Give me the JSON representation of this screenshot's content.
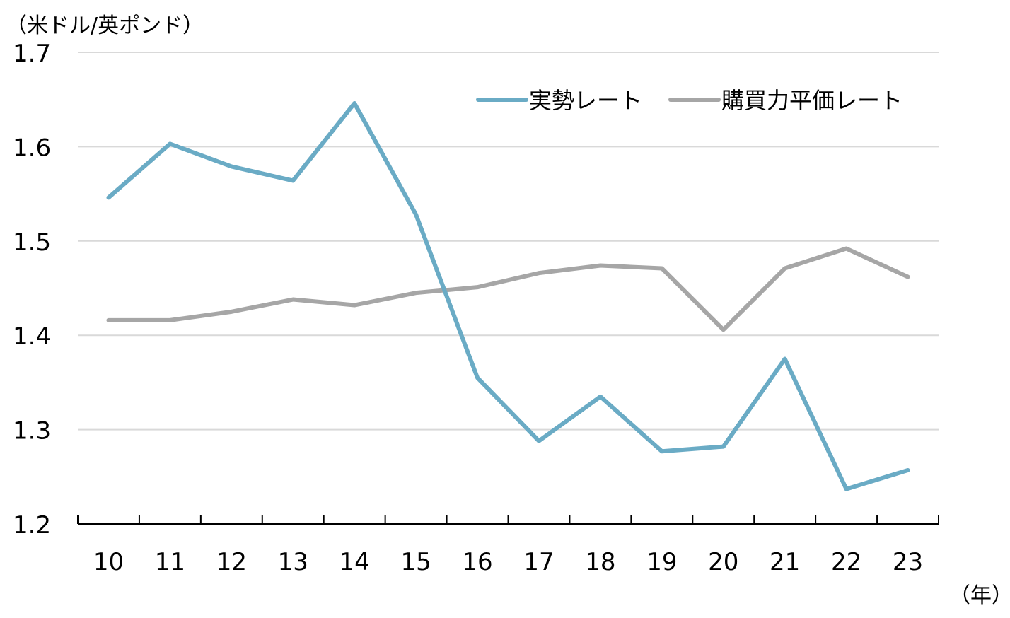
{
  "chart_data": {
    "type": "line",
    "title": "",
    "ylabel": "（米ドル/英ポンド）",
    "xlabel": "（年）",
    "ylim": [
      1.2,
      1.7
    ],
    "yticks": [
      "1.2",
      "1.3",
      "1.4",
      "1.5",
      "1.6",
      "1.7"
    ],
    "grid": true,
    "legend": "top-right",
    "categories": [
      "10",
      "11",
      "12",
      "13",
      "14",
      "15",
      "16",
      "17",
      "18",
      "19",
      "20",
      "21",
      "22",
      "23"
    ],
    "series": [
      {
        "name": "実勢レート",
        "color": "#6aabc5",
        "values": [
          1.546,
          1.603,
          1.579,
          1.564,
          1.646,
          1.528,
          1.355,
          1.288,
          1.335,
          1.277,
          1.282,
          1.375,
          1.237,
          1.257
        ]
      },
      {
        "name": "購買力平価レート",
        "color": "#a6a6a6",
        "values": [
          1.416,
          1.416,
          1.425,
          1.438,
          1.432,
          1.445,
          1.451,
          1.466,
          1.474,
          1.471,
          1.406,
          1.471,
          1.492,
          1.462
        ]
      }
    ]
  }
}
